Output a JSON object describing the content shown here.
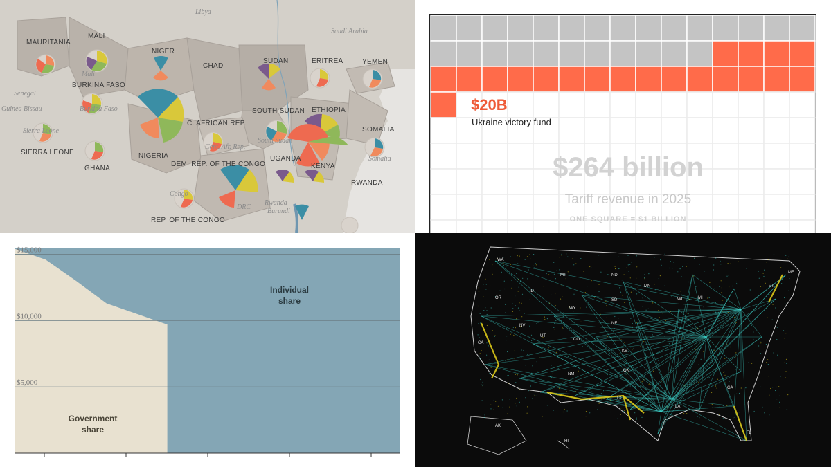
{
  "africa_map": {
    "country_labels": [
      "MAURITANIA",
      "MALI",
      "NIGER",
      "CHAD",
      "SUDAN",
      "ERITREA",
      "YEMEN",
      "BURKINA FASO",
      "SOUTH SUDAN",
      "ETHIOPIA",
      "SOMALIA",
      "C. AFRICAN REP.",
      "NIGERIA",
      "SIERRA LEONE",
      "GHANA",
      "UGANDA",
      "KENYA",
      "DEM. REP. OF THE CONGO",
      "RWANDA",
      "REP. OF THE CONGO"
    ],
    "geo_labels": [
      "Libya",
      "Saudi Arabia",
      "Senegal",
      "Guinea Bissau",
      "Mali",
      "South Sudan",
      "Somalia",
      "Congo",
      "DRC",
      "Rwanda",
      "Burundi",
      "Cent. Afr. Rep.",
      "Burkina Faso",
      "Sierra Leone"
    ],
    "wedge_colors": {
      "blue": "#3b8ea5",
      "yellow": "#d9c83a",
      "green": "#8fb85a",
      "purple": "#7a5a8c",
      "orange": "#f08a5d",
      "red": "#ee6a50"
    }
  },
  "tariff_chart": {
    "amount_label": "$20B",
    "fund_label": "Ukraine victory fund",
    "total_label": "$264 billion",
    "subtitle": "Tariff revenue in 2025",
    "note": "ONE SQUARE = $1 BILLION",
    "colors": {
      "gray": "#c4c4c4",
      "orange": "#ff6b4a",
      "grid": "#ececec"
    }
  },
  "chart_data": [
    {
      "type": "area",
      "x": [
        0,
        1,
        2,
        3,
        4,
        5,
        6,
        7
      ],
      "series": [
        {
          "name": "Government share",
          "values": [
            15400,
            14600,
            13000,
            11300,
            10500,
            9700,
            9700,
            9700
          ]
        },
        {
          "name": "Individual share",
          "values": [
            0,
            0,
            0,
            0,
            0,
            9700,
            9700,
            9700
          ]
        }
      ],
      "ytick_labels": [
        "$5,000",
        "$10,000",
        "$15,000"
      ],
      "yticks": [
        5000,
        10000,
        15000
      ],
      "ylim": [
        0,
        15500
      ],
      "title": "",
      "xlabel": "",
      "ylabel": "",
      "colors": {
        "government": "#e8e1d0",
        "individual": "#84a6b5"
      }
    },
    {
      "type": "unit",
      "total_squares": 264,
      "highlight_squares": 20,
      "unit": "$1 billion",
      "title": "$264 billion",
      "subtitle": "Tariff revenue in 2025"
    }
  ],
  "us_map": {
    "state_labels": [
      "WA",
      "MT",
      "ND",
      "MN",
      "ME",
      "OR",
      "ID",
      "SD",
      "WI",
      "MI",
      "VT",
      "WY",
      "NE",
      "NV",
      "UT",
      "CO",
      "KS",
      "CA",
      "NM",
      "OK",
      "TX",
      "LA",
      "GA",
      "FL",
      "AK",
      "HI"
    ],
    "colors": {
      "cyan": "#3fd8d0",
      "yellow": "#e8d21a",
      "outline": "#cfcfcf"
    }
  }
}
